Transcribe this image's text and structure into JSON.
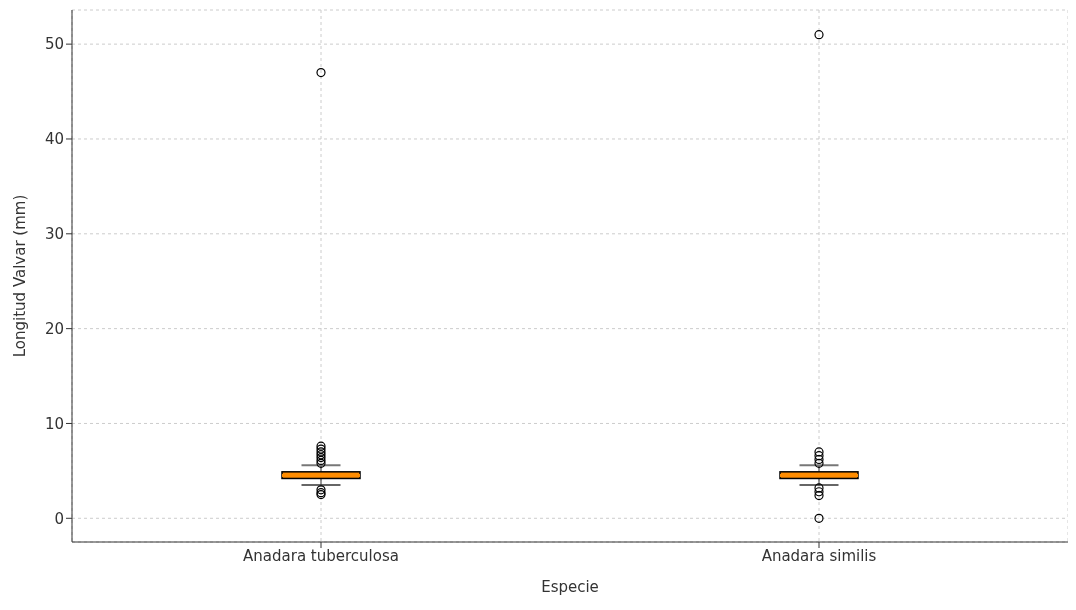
{
  "chart_data": {
    "type": "box",
    "xlabel": "Especie",
    "ylabel": "Longitud Valvar (mm)",
    "categories": [
      "Anadara tuberculosa",
      "Anadara similis"
    ],
    "series": [
      {
        "color": "#ff8c00",
        "boxes": [
          {
            "low": 3.5,
            "q1": 4.2,
            "median": 4.5,
            "q3": 4.9,
            "high": 5.6,
            "outliers": [
              5.8,
              6.1,
              6.4,
              6.7,
              7.0,
              7.3,
              7.6,
              3.0,
              2.7,
              2.5,
              47
            ]
          },
          {
            "low": 3.5,
            "q1": 4.2,
            "median": 4.5,
            "q3": 4.9,
            "high": 5.6,
            "outliers": [
              5.8,
              6.2,
              6.6,
              7.0,
              3.2,
              2.8,
              2.4,
              0,
              51
            ]
          }
        ]
      }
    ],
    "ylim": [
      -2.5,
      53.6
    ],
    "yticks": [
      0,
      10,
      20,
      30,
      40,
      50
    ],
    "grid": true
  }
}
